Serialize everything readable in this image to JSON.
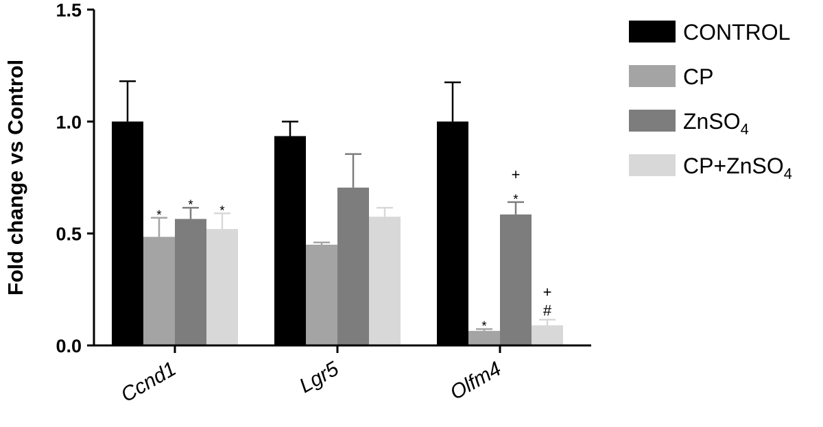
{
  "chart_data": {
    "type": "bar",
    "title": "",
    "xlabel": "",
    "ylabel": "Fold change vs Control",
    "ylim": [
      0,
      1.5
    ],
    "yticks": [
      "0.0",
      "0.5",
      "1.0",
      "1.5"
    ],
    "ytick_values": [
      0,
      0.5,
      1.0,
      1.5
    ],
    "categories": [
      "Ccnd1",
      "Lgr5",
      "Olfm4"
    ],
    "grid": false,
    "legend_position": "right",
    "series": [
      {
        "name": "CONTROL",
        "name_parts": [
          "CONTROL"
        ],
        "color": "#000000",
        "values": [
          1.0,
          0.935,
          1.0
        ],
        "errors": [
          0.18,
          0.065,
          0.175
        ],
        "annotations": [
          [],
          [],
          []
        ]
      },
      {
        "name": "CP",
        "name_parts": [
          "CP"
        ],
        "color": "#a4a4a4",
        "values": [
          0.485,
          0.45,
          0.065
        ],
        "errors": [
          0.085,
          0.01,
          0.008
        ],
        "annotations": [
          [
            "*"
          ],
          [],
          [
            "*"
          ]
        ]
      },
      {
        "name": "ZnSO4",
        "name_parts": [
          "ZnSO",
          "4"
        ],
        "color": "#7d7d7d",
        "values": [
          0.565,
          0.705,
          0.585
        ],
        "errors": [
          0.05,
          0.15,
          0.055
        ],
        "annotations": [
          [
            "*"
          ],
          [],
          [
            "*",
            "+"
          ]
        ]
      },
      {
        "name": "CP+ZnSO4",
        "name_parts": [
          "CP+ZnSO",
          "4"
        ],
        "color": "#d8d8d8",
        "values": [
          0.52,
          0.575,
          0.09
        ],
        "errors": [
          0.07,
          0.04,
          0.025
        ],
        "annotations": [
          [
            "*"
          ],
          [],
          [
            "#",
            "+"
          ]
        ]
      }
    ]
  }
}
